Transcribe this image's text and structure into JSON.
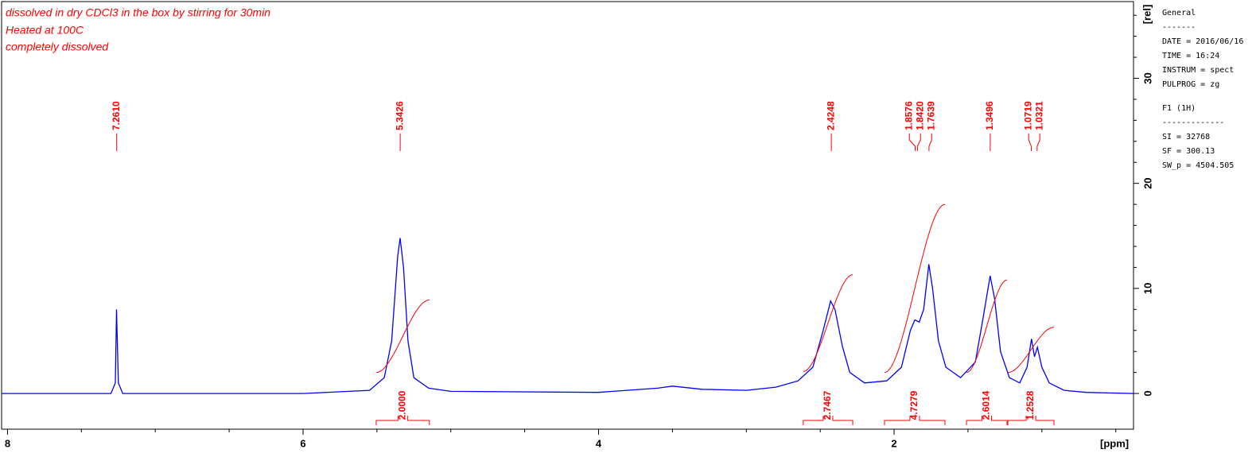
{
  "chart_data": {
    "type": "nmr",
    "notes": [
      "dissolved in dry CDCl3 in the box by stirring for 30min",
      "Heated at 100C",
      "completely dissolved"
    ],
    "xlabel": "[ppm]",
    "ylabel": "[rel]",
    "xlim": [
      8.04,
      0.38
    ],
    "xticks": [
      8,
      6,
      4,
      2
    ],
    "xminor": [
      7.5,
      7,
      6.5,
      5.5,
      5,
      4.5,
      3.5,
      3,
      2.5,
      1.5,
      1,
      0.5
    ],
    "ylim": [
      -3.4,
      37.3
    ],
    "yticks": [
      0,
      10,
      20,
      30
    ],
    "yminor": [
      2,
      4,
      6,
      8,
      12,
      14,
      16,
      18,
      22,
      24,
      26,
      28,
      32,
      34,
      36
    ],
    "spectrum": {
      "color": "#0000ff",
      "x": [
        8.04,
        7.4,
        7.3,
        7.27,
        7.262,
        7.25,
        7.22,
        6.0,
        5.55,
        5.45,
        5.4,
        5.36,
        5.343,
        5.32,
        5.29,
        5.25,
        5.15,
        5.0,
        4.0,
        3.6,
        3.5,
        3.3,
        3.0,
        2.8,
        2.65,
        2.55,
        2.48,
        2.43,
        2.4,
        2.35,
        2.3,
        2.2,
        2.05,
        1.95,
        1.89,
        1.86,
        1.83,
        1.8,
        1.765,
        1.74,
        1.7,
        1.65,
        1.55,
        1.45,
        1.4,
        1.35,
        1.32,
        1.28,
        1.22,
        1.15,
        1.1,
        1.07,
        1.05,
        1.03,
        1.0,
        0.95,
        0.85,
        0.7,
        0.38
      ],
      "y": [
        0,
        0,
        0,
        1,
        8,
        1,
        0,
        0,
        0.3,
        1.5,
        5,
        13,
        14.8,
        12,
        5,
        1.5,
        0.5,
        0.2,
        0.1,
        0.5,
        0.7,
        0.4,
        0.3,
        0.6,
        1.2,
        2.5,
        6,
        8.8,
        8,
        4.5,
        2,
        1,
        1.2,
        2.5,
        6,
        7,
        6.8,
        8,
        12.3,
        10,
        5,
        2.5,
        1.5,
        3,
        7,
        11.2,
        9,
        4,
        1.5,
        1,
        2.5,
        5.2,
        3.5,
        4.4,
        2.5,
        1,
        0.3,
        0.1,
        0
      ]
    },
    "peak_color": "#ff0000",
    "peaks": [
      {
        "value": 7.261,
        "label": "7.2610"
      },
      {
        "value": 5.3426,
        "label": "5.3426"
      },
      {
        "value": 2.4248,
        "label": "2.4248"
      },
      {
        "value": 1.8576,
        "label": "1.8576"
      },
      {
        "value": 1.842,
        "label": "1.8420"
      },
      {
        "value": 1.7639,
        "label": "1.7639"
      },
      {
        "value": 1.3496,
        "label": "1.3496"
      },
      {
        "value": 1.0719,
        "label": "1.0719"
      },
      {
        "value": 1.0321,
        "label": "1.0321"
      }
    ],
    "integrals": [
      {
        "from": 5.505,
        "to": 5.145,
        "y_start": 2,
        "y_end": 8.9,
        "value": {
          "value": 2,
          "label": "2.0000"
        }
      },
      {
        "from": 2.615,
        "to": 2.28,
        "y_start": 2.1,
        "y_end": 11.3,
        "value": {
          "value": 2.7467,
          "label": "2.7467"
        }
      },
      {
        "from": 2.065,
        "to": 1.656,
        "y_start": 2,
        "y_end": 18,
        "value": {
          "value": 4.7279,
          "label": "4.7279"
        }
      },
      {
        "from": 1.51,
        "to": 1.236,
        "y_start": 2,
        "y_end": 10.8,
        "value": {
          "value": 2.6014,
          "label": "2.6014"
        }
      },
      {
        "from": 1.23,
        "to": 0.918,
        "y_start": 2,
        "y_end": 6.3,
        "value": {
          "value": 1.2528,
          "label": "1.2528"
        }
      }
    ],
    "parameters": [
      "General",
      "-------",
      "DATE = 2016/06/16",
      "TIME = 16:24",
      "INSTRUM = spect",
      "PULPROG = zg",
      "F1 (1H)",
      "-------------",
      "SI =  32768",
      "SF =  300.13",
      "SW_p =  4504.505"
    ]
  }
}
